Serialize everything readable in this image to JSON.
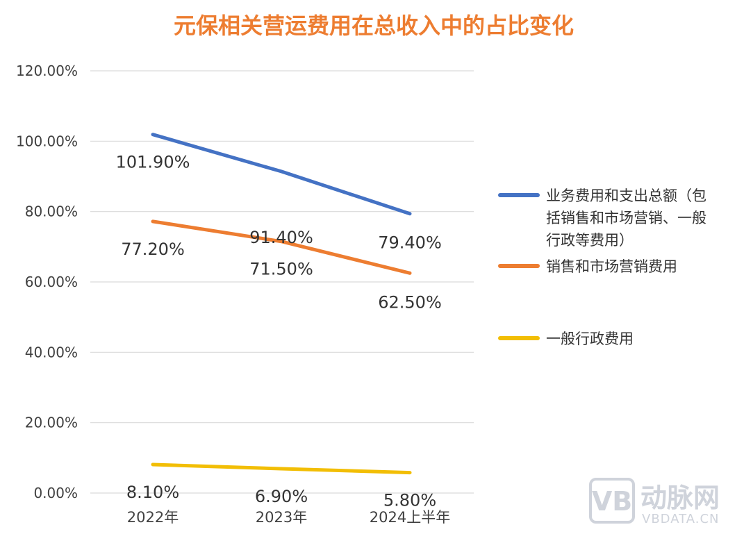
{
  "chart_data": {
    "type": "line",
    "title": "元保相关营运费用在总收入中的占比变化",
    "categories": [
      "2022年",
      "2023年",
      "2024上半年"
    ],
    "yticks": [
      "0.00%",
      "20.00%",
      "40.00%",
      "60.00%",
      "80.00%",
      "100.00%",
      "120.00%"
    ],
    "ylim": [
      0,
      120
    ],
    "grid": true,
    "legend_position": "right",
    "series": [
      {
        "name_lines": [
          "业务费用和支出总额（包",
          "括销售和市场营销、一般",
          "行政等费用）"
        ],
        "values": [
          101.9,
          91.4,
          79.4
        ],
        "labels": [
          "101.90%",
          "91.40%",
          "79.40%"
        ],
        "color": "#4472C4"
      },
      {
        "name_lines": [
          "销售和市场营销费用"
        ],
        "values": [
          77.2,
          71.5,
          62.5
        ],
        "labels": [
          "77.20%",
          "71.50%",
          "62.50%"
        ],
        "color": "#ED7D31"
      },
      {
        "name_lines": [
          "一般行政费用"
        ],
        "values": [
          8.1,
          6.9,
          5.8
        ],
        "labels": [
          "8.10%",
          "6.90%",
          "5.80%"
        ],
        "color": "#F2BE05"
      }
    ]
  },
  "watermark": {
    "logo": "VB",
    "brand": "动脉网",
    "site": "VBDATA.CN"
  }
}
